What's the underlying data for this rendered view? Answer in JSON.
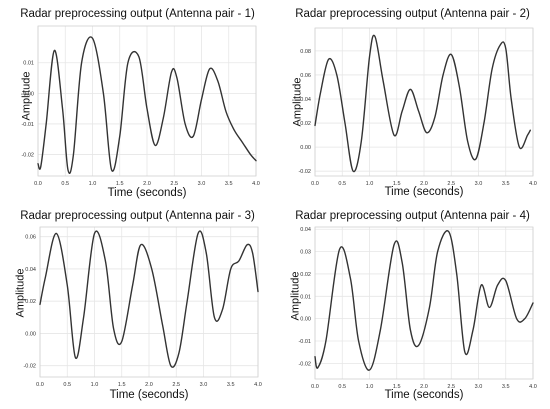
{
  "chart_data": [
    {
      "type": "line",
      "title": "Radar preprocessing output (Antenna pair - 1)",
      "xlabel": "Time (seconds)",
      "ylabel": "Amplitude",
      "xlim": [
        0,
        4
      ],
      "ylim": [
        -0.027,
        0.022
      ],
      "xticks": [
        "0.0",
        "0.5",
        "1.0",
        "1.5",
        "2.0",
        "2.5",
        "3.0",
        "3.5",
        "4.0"
      ],
      "yticks": [
        "-0.02",
        "-0.01",
        "0.00",
        "0.01"
      ],
      "grid": true,
      "series": [
        {
          "x": [
            0.0,
            0.05,
            0.15,
            0.3,
            0.45,
            0.55,
            0.65,
            0.8,
            1.0,
            1.2,
            1.35,
            1.5,
            1.65,
            1.85,
            2.0,
            2.15,
            2.3,
            2.45,
            2.55,
            2.7,
            2.85,
            3.0,
            3.15,
            3.3,
            3.45,
            3.6,
            3.75,
            3.9,
            4.0
          ],
          "y": [
            -0.023,
            -0.024,
            -0.01,
            0.014,
            -0.005,
            -0.025,
            -0.02,
            0.01,
            0.018,
            0.0,
            -0.025,
            -0.014,
            0.01,
            0.012,
            -0.005,
            -0.017,
            -0.008,
            0.007,
            0.005,
            -0.01,
            -0.014,
            -0.002,
            0.008,
            0.004,
            -0.006,
            -0.012,
            -0.016,
            -0.02,
            -0.022
          ]
        }
      ]
    },
    {
      "type": "line",
      "title": "Radar preprocessing output (Antenna pair - 2)",
      "xlabel": "Time (seconds)",
      "ylabel": "Amplitude",
      "xlim": [
        0,
        4
      ],
      "ylim": [
        -0.024,
        0.099
      ],
      "xticks": [
        "0.0",
        "0.5",
        "1.0",
        "1.5",
        "2.0",
        "2.5",
        "3.0",
        "3.5",
        "4.0"
      ],
      "yticks": [
        "-0.02",
        "0.00",
        "0.02",
        "0.04",
        "0.06",
        "0.08"
      ],
      "grid": true,
      "series": [
        {
          "x": [
            0.0,
            0.1,
            0.25,
            0.4,
            0.55,
            0.7,
            0.85,
            1.0,
            1.1,
            1.25,
            1.45,
            1.6,
            1.75,
            1.9,
            2.05,
            2.2,
            2.35,
            2.5,
            2.65,
            2.8,
            2.95,
            3.1,
            3.25,
            3.4,
            3.5,
            3.6,
            3.75,
            3.9,
            3.95
          ],
          "y": [
            0.018,
            0.045,
            0.073,
            0.06,
            0.02,
            -0.02,
            0.005,
            0.075,
            0.092,
            0.055,
            0.01,
            0.03,
            0.048,
            0.03,
            0.012,
            0.025,
            0.06,
            0.077,
            0.05,
            0.005,
            -0.01,
            0.02,
            0.065,
            0.085,
            0.082,
            0.04,
            0.0,
            0.01,
            0.014
          ]
        }
      ]
    },
    {
      "type": "line",
      "title": "Radar preprocessing output (Antenna pair - 3)",
      "xlabel": "Time (seconds)",
      "ylabel": "Amplitude",
      "xlim": [
        0,
        4
      ],
      "ylim": [
        -0.027,
        0.066
      ],
      "xticks": [
        "0.0",
        "0.5",
        "1.0",
        "1.5",
        "2.0",
        "2.5",
        "3.0",
        "3.5",
        "4.0"
      ],
      "yticks": [
        "-0.02",
        "0.00",
        "0.02",
        "0.04",
        "0.06"
      ],
      "grid": true,
      "series": [
        {
          "x": [
            0.0,
            0.1,
            0.3,
            0.5,
            0.65,
            0.8,
            1.0,
            1.2,
            1.35,
            1.5,
            1.7,
            1.85,
            2.05,
            2.25,
            2.4,
            2.55,
            2.7,
            2.9,
            3.05,
            3.2,
            3.35,
            3.5,
            3.65,
            3.8,
            3.9,
            4.0
          ],
          "y": [
            0.018,
            0.035,
            0.062,
            0.03,
            -0.015,
            0.01,
            0.062,
            0.045,
            0.003,
            -0.005,
            0.03,
            0.055,
            0.04,
            0.005,
            -0.02,
            -0.012,
            0.02,
            0.062,
            0.05,
            0.01,
            0.015,
            0.04,
            0.045,
            0.055,
            0.05,
            0.026
          ]
        }
      ]
    },
    {
      "type": "line",
      "title": "Radar preprocessing output (Antenna pair - 4)",
      "xlabel": "Time (seconds)",
      "ylabel": "Amplitude",
      "xlim": [
        0,
        4
      ],
      "ylim": [
        -0.027,
        0.041
      ],
      "xticks": [
        "0.0",
        "0.5",
        "1.0",
        "1.5",
        "2.0",
        "2.5",
        "3.0",
        "3.5",
        "4.0"
      ],
      "yticks": [
        "-0.02",
        "-0.01",
        "0.00",
        "0.01",
        "0.02",
        "0.03",
        "0.04"
      ],
      "grid": true,
      "series": [
        {
          "x": [
            0.0,
            0.05,
            0.2,
            0.45,
            0.65,
            0.8,
            1.0,
            1.2,
            1.45,
            1.6,
            1.75,
            1.9,
            2.1,
            2.25,
            2.45,
            2.6,
            2.75,
            2.9,
            3.05,
            3.2,
            3.35,
            3.5,
            3.7,
            3.85,
            4.0
          ],
          "y": [
            -0.017,
            -0.022,
            -0.01,
            0.031,
            0.018,
            -0.01,
            -0.023,
            -0.005,
            0.033,
            0.025,
            -0.005,
            -0.012,
            0.005,
            0.03,
            0.039,
            0.02,
            -0.015,
            -0.005,
            0.015,
            0.005,
            0.015,
            0.017,
            0.0,
            0.0,
            0.007
          ]
        }
      ]
    }
  ]
}
